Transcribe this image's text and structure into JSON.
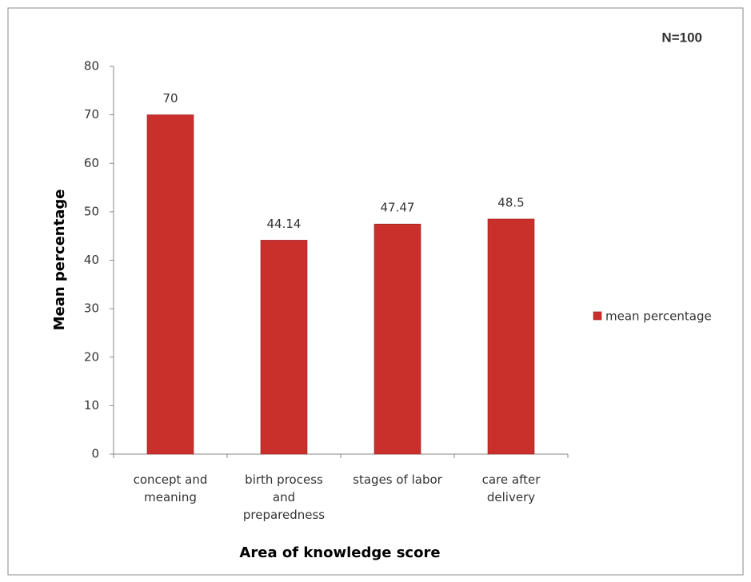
{
  "chart_data": {
    "type": "bar",
    "annotation": "N=100",
    "y_label": "Mean percentage",
    "x_label": "Area of knowledge score",
    "categories": [
      "concept and meaning",
      "birth process and preparedness",
      "stages of labor",
      "care after delivery"
    ],
    "series": [
      {
        "name": "mean percentage",
        "color": "#c9302c",
        "values": [
          70,
          44.14,
          47.47,
          48.5
        ]
      }
    ],
    "ylim": [
      0,
      80
    ],
    "yticks": [
      0,
      10,
      20,
      30,
      40,
      50,
      60,
      70,
      80
    ],
    "grid": false,
    "legend": "right"
  }
}
